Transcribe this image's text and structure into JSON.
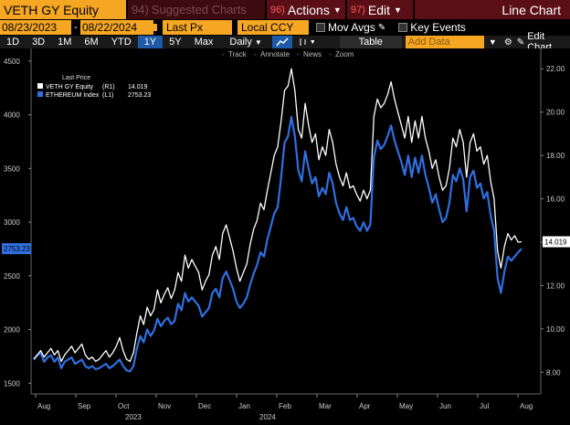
{
  "header": {
    "ticker": "VETH GY Equity",
    "suggested_num": "94)",
    "suggested_label": "Suggested Charts",
    "actions_num": "96)",
    "actions_label": "Actions",
    "edit_num": "97)",
    "edit_label": "Edit",
    "title": "Line Chart"
  },
  "controls": {
    "start_date": "08/23/2023",
    "end_date": "08/22/2024",
    "price_field": "Last Px",
    "currency": "Local CCY",
    "mov_avgs": "Mov Avgs",
    "key_events": "Key Events"
  },
  "toolbar": {
    "periods": [
      "1D",
      "3D",
      "1M",
      "6M",
      "YTD",
      "1Y",
      "5Y",
      "Max"
    ],
    "active_period": "1Y",
    "frequency": "Daily",
    "table": "Table",
    "add_data_placeholder": "Add Data",
    "edit_chart": "Edit Chart"
  },
  "subtools": {
    "track": "Track",
    "annotate": "Annotate",
    "news": "News",
    "zoom": "Zoom"
  },
  "colors": {
    "orange": "#f5a623",
    "maroon": "#5a0f16",
    "blue_active": "#1e5aa8",
    "series_white": "#ffffff",
    "series_blue": "#2f6fe0"
  },
  "chart_data": {
    "type": "line",
    "legend_title": "Last Price",
    "legend_placement": "top-left",
    "x_tick_labels": [
      "Aug",
      "Sep",
      "Oct",
      "Nov",
      "Dec",
      "Jan",
      "Feb",
      "Mar",
      "Apr",
      "May",
      "Jun",
      "Jul",
      "Aug"
    ],
    "x_year_labels": [
      "2023",
      "2024"
    ],
    "left_axis": {
      "ticks": [
        1500,
        2000,
        2500,
        3000,
        3500,
        4000,
        4500
      ],
      "range": [
        1400,
        4550
      ]
    },
    "right_axis": {
      "ticks": [
        "8.00",
        "10.00",
        "12.00",
        "14.00",
        "16.00",
        "18.00",
        "20.00",
        "22.00"
      ],
      "range": [
        7.0,
        22.6
      ]
    },
    "series": [
      {
        "name": "VETH GY Equity",
        "axis": "R1",
        "last_value": "14.019",
        "color": "#ffffff",
        "values": [
          8.6,
          8.8,
          9.0,
          8.7,
          8.9,
          9.1,
          8.8,
          9.0,
          8.5,
          8.8,
          9.0,
          9.2,
          8.9,
          9.1,
          9.3,
          8.8,
          8.6,
          8.7,
          8.5,
          8.6,
          8.8,
          9.0,
          8.7,
          8.9,
          9.2,
          9.6,
          9.0,
          8.6,
          8.5,
          8.9,
          9.8,
          10.6,
          10.2,
          11.0,
          10.6,
          10.9,
          11.8,
          11.2,
          11.6,
          11.9,
          11.4,
          11.8,
          12.6,
          12.2,
          13.4,
          12.8,
          13.2,
          12.9,
          12.6,
          11.8,
          12.2,
          12.5,
          13.4,
          13.8,
          13.2,
          14.4,
          14.8,
          14.2,
          13.6,
          12.8,
          12.2,
          12.6,
          13.0,
          13.9,
          14.6,
          15.0,
          15.8,
          15.5,
          16.4,
          17.2,
          18.0,
          18.4,
          19.6,
          21.0,
          21.2,
          22.0,
          21.0,
          19.2,
          18.8,
          20.4,
          19.4,
          18.6,
          19.0,
          17.8,
          18.4,
          18.0,
          19.2,
          18.6,
          17.6,
          17.0,
          16.6,
          17.2,
          16.5,
          16.6,
          16.2,
          15.9,
          16.4,
          16.0,
          16.4,
          19.8,
          20.6,
          20.2,
          20.4,
          20.8,
          21.4,
          20.6,
          20.0,
          19.4,
          18.8,
          19.8,
          18.6,
          19.6,
          18.8,
          19.8,
          18.8,
          18.2,
          17.4,
          17.8,
          17.0,
          16.4,
          16.6,
          17.4,
          18.8,
          18.4,
          19.2,
          18.6,
          17.0,
          18.6,
          19.0,
          18.2,
          18.4,
          17.6,
          18.0,
          16.8,
          16.0,
          13.6,
          12.8,
          13.8,
          14.4,
          14.1,
          14.3,
          14.0,
          14.019
        ],
        "note": ""
      },
      {
        "name": "ETHEREUM Index",
        "axis": "L1",
        "last_value": "2753.23",
        "color": "#2f6fe0",
        "values": [
          1720,
          1760,
          1780,
          1700,
          1740,
          1760,
          1700,
          1740,
          1640,
          1700,
          1720,
          1740,
          1680,
          1700,
          1720,
          1660,
          1640,
          1660,
          1630,
          1640,
          1660,
          1680,
          1640,
          1660,
          1690,
          1720,
          1660,
          1620,
          1610,
          1660,
          1820,
          1940,
          1880,
          2000,
          1940,
          1990,
          2100,
          2030,
          2080,
          2110,
          2050,
          2080,
          2240,
          2180,
          2340,
          2260,
          2300,
          2260,
          2220,
          2120,
          2160,
          2200,
          2340,
          2380,
          2300,
          2480,
          2540,
          2460,
          2380,
          2260,
          2200,
          2240,
          2300,
          2420,
          2520,
          2600,
          2720,
          2680,
          2840,
          2960,
          3080,
          3140,
          3420,
          3740,
          3800,
          3980,
          3800,
          3480,
          3380,
          3660,
          3500,
          3360,
          3420,
          3240,
          3320,
          3260,
          3460,
          3360,
          3180,
          3080,
          3020,
          3140,
          3020,
          3040,
          2960,
          2920,
          3000,
          2920,
          2980,
          3600,
          3760,
          3680,
          3720,
          3800,
          3900,
          3760,
          3660,
          3560,
          3440,
          3620,
          3420,
          3600,
          3460,
          3620,
          3440,
          3320,
          3180,
          3260,
          3120,
          3000,
          3040,
          3180,
          3440,
          3380,
          3500,
          3400,
          3100,
          3420,
          3480,
          3320,
          3360,
          3220,
          3280,
          3060,
          2920,
          2480,
          2340,
          2540,
          2680,
          2640,
          2680,
          2720,
          2753.23
        ],
        "note": ""
      }
    ]
  }
}
